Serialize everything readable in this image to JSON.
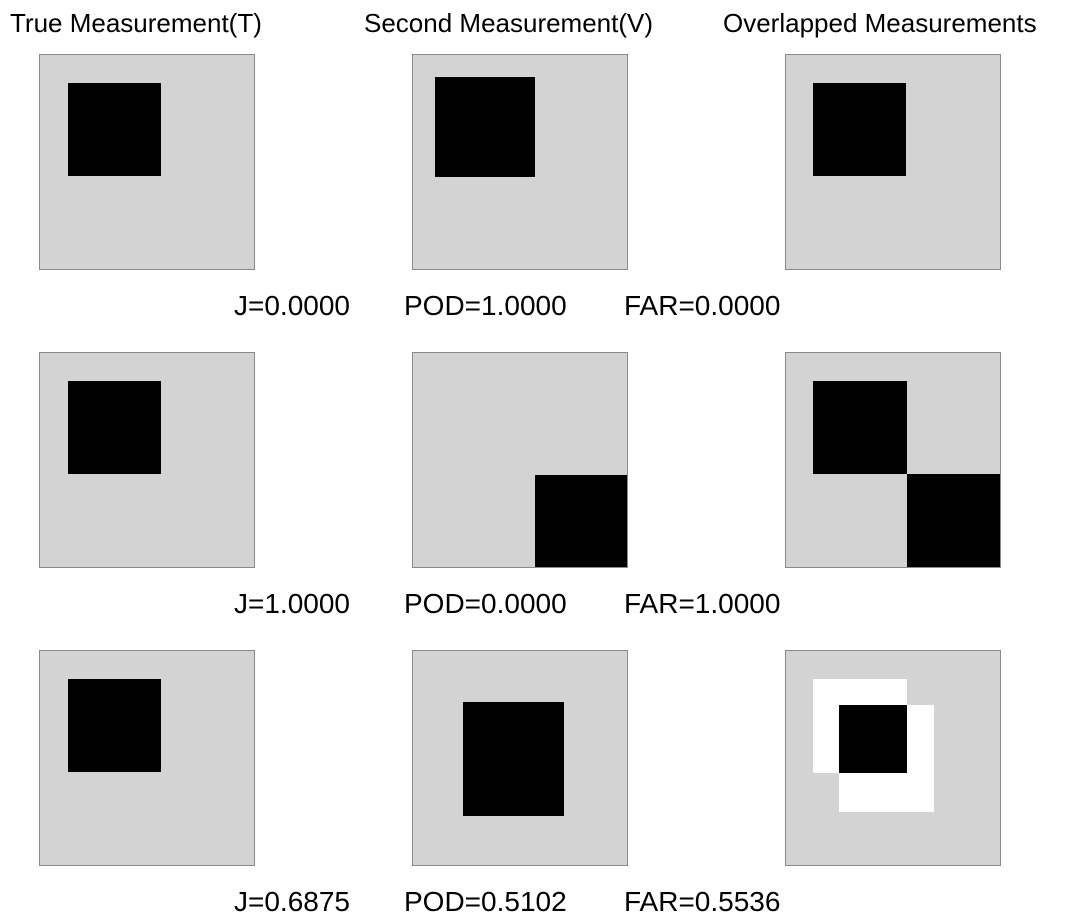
{
  "column_titles": {
    "true": "True Measurement(T)",
    "second": "Second Measurement(V)",
    "overlap": "Overlapped Measurements"
  },
  "rows": [
    {
      "j": "J=0.0000",
      "pod": "POD=1.0000",
      "far": "FAR=0.0000"
    },
    {
      "j": "J=1.0000",
      "pod": "POD=0.0000",
      "far": "FAR=1.0000"
    },
    {
      "j": "J=0.6875",
      "pod": "POD=0.5102",
      "far": "FAR=0.5536"
    }
  ],
  "colors": {
    "background": "#d3d3d3",
    "region": "#000000",
    "mismatch": "#ffffff"
  }
}
